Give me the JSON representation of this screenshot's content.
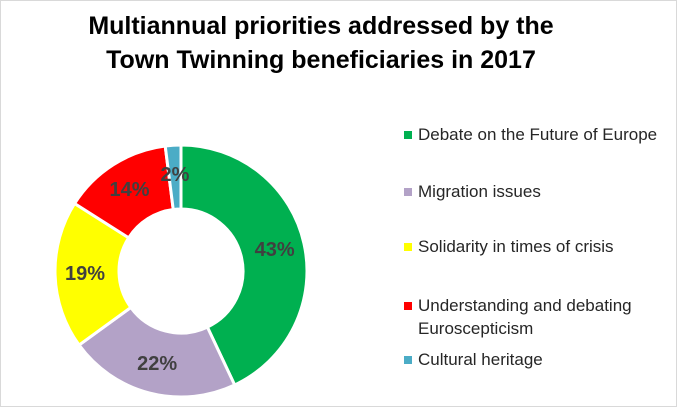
{
  "chart_data": {
    "type": "pie",
    "donut": true,
    "title_lines": [
      "Multiannual priorities addressed by the",
      "Town Twinning beneficiaries in 2017"
    ],
    "legend_position": "right",
    "slices": [
      {
        "name": "Debate on the Future of Europe",
        "value": 43,
        "label": "43%",
        "color": "#00b050"
      },
      {
        "name": "Migration issues",
        "value": 22,
        "label": "22%",
        "color": "#b3a2c7"
      },
      {
        "name": "Solidarity in times of crisis",
        "value": 19,
        "label": "19%",
        "color": "#ffff00"
      },
      {
        "name": "Understanding and debating Euroscepticism",
        "value": 14,
        "label": "14%",
        "color": "#ff0000"
      },
      {
        "name": "Cultural heritage",
        "value": 2,
        "label": "2%",
        "color": "#4bacc6"
      }
    ]
  }
}
